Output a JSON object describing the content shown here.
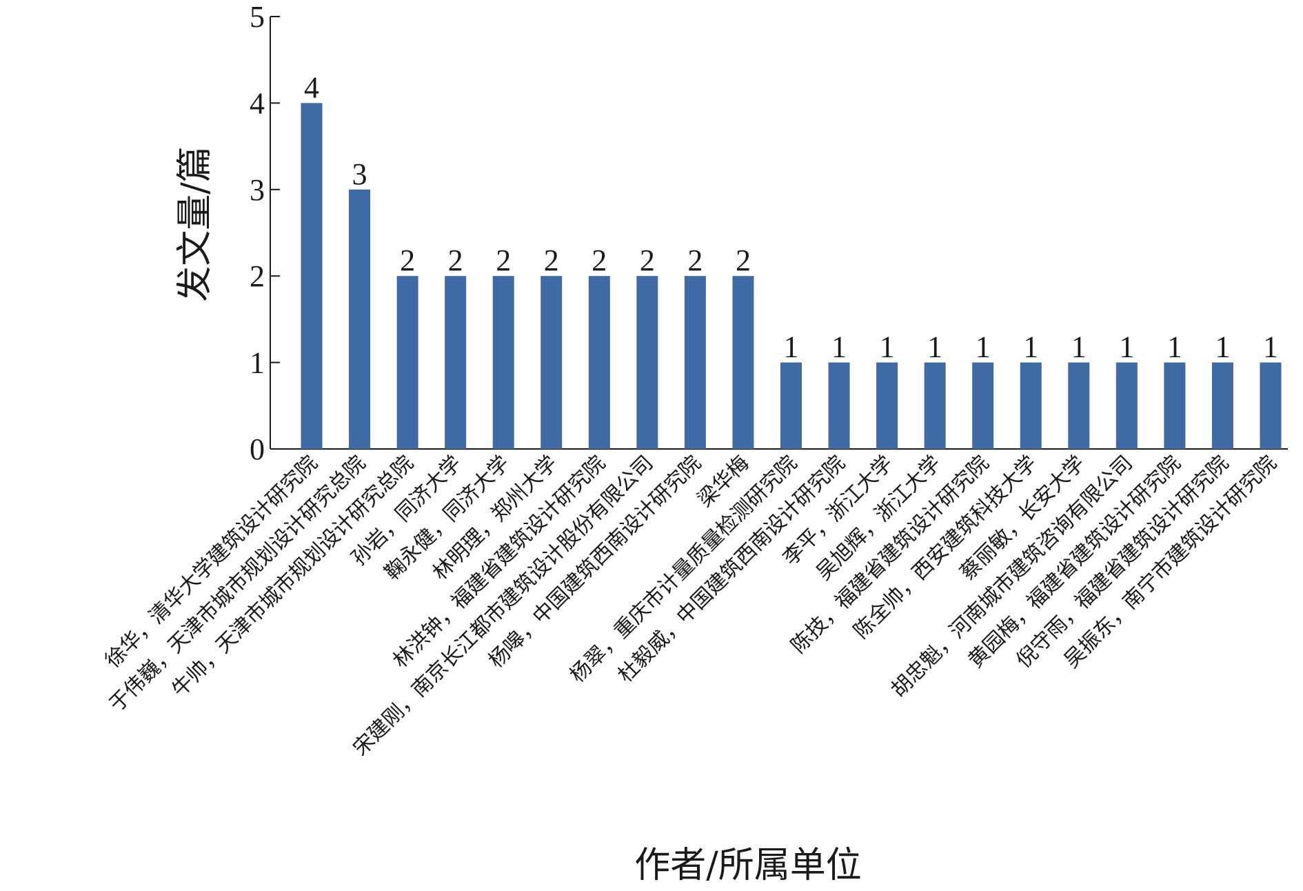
{
  "chart_data": {
    "type": "bar",
    "x_label": "作者/所属单位",
    "y_label": "发文量/篇",
    "categories": [
      "徐华，清华大学建筑设计研究院",
      "于伟巍，天津市城市规划设计研究总院",
      "牛帅，天津市城市规划设计研究总院",
      "孙岩，同济大学",
      "鞠永健，同济大学",
      "林明理，郑州大学",
      "林洪钟，福建省建筑设计研究院",
      "宋建刚，南京长江都市建筑设计股份有限公司",
      "杨嗥，中国建筑西南设计研究院",
      "梁华梅",
      "杨翠，重庆市计量质量检测研究院",
      "杜毅威，中国建筑西南设计研究院",
      "李平，浙江大学",
      "吴旭辉，浙江大学",
      "陈技，福建省建筑设计研究院",
      "陈全帅，西安建筑科技大学",
      "蔡丽敏，长安大学",
      "胡忠魁，河南城市建筑咨询有限公司",
      "黄园梅，福建省建筑设计研究院",
      "倪守雨，福建省建筑设计研究院",
      "吴振东，南宁市建筑设计研究院"
    ],
    "values": [
      4,
      3,
      2,
      2,
      2,
      2,
      2,
      2,
      2,
      2,
      1,
      1,
      1,
      1,
      1,
      1,
      1,
      1,
      1,
      1,
      1
    ],
    "color": "#3f6aa3",
    "ylim": [
      0,
      5
    ],
    "yticks": [
      0,
      1,
      2,
      3,
      4,
      5
    ],
    "grid": false
  }
}
